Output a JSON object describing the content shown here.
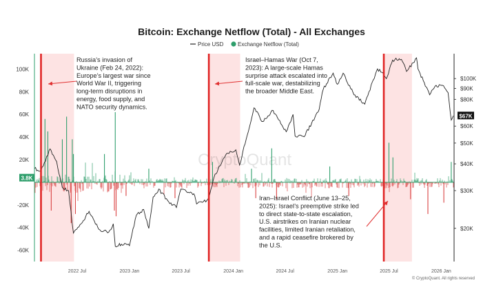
{
  "chart_data": {
    "type": "bar",
    "title": "Bitcoin: Exchange Netflow (Total) - All Exchanges",
    "legend": {
      "placement": "top-center",
      "series": [
        {
          "name": "Price USD",
          "style": "line",
          "color": "#222222"
        },
        {
          "name": "Exchange Netflow (Total)",
          "style": "bar",
          "color": "#2e9e6b"
        }
      ]
    },
    "x_axis": {
      "range": [
        "2022-02-01",
        "2026-02-15"
      ],
      "ticks": [
        {
          "date": "2022-07-01",
          "label": "2022 Jul"
        },
        {
          "date": "2023-01-01",
          "label": "2023 Jan"
        },
        {
          "date": "2023-07-01",
          "label": "2023 Jul"
        },
        {
          "date": "2024-01-01",
          "label": "2024 Jan"
        },
        {
          "date": "2024-07-01",
          "label": "2024 Jul"
        },
        {
          "date": "2025-01-01",
          "label": "2025 Jan"
        },
        {
          "date": "2025-07-01",
          "label": "2025 Jul"
        },
        {
          "date": "2026-01-01",
          "label": "2026 Jan"
        }
      ]
    },
    "y_left": {
      "name": "Exchange Netflow (Total)",
      "range": [
        -70000,
        110000
      ],
      "ticks": [
        {
          "value": 100000,
          "label": "100K"
        },
        {
          "value": 80000,
          "label": "80K"
        },
        {
          "value": 60000,
          "label": "60K"
        },
        {
          "value": 40000,
          "label": "40K"
        },
        {
          "value": 20000,
          "label": "20K"
        },
        {
          "value": 0,
          "label": "0"
        },
        {
          "value": -20000,
          "label": "-20K"
        },
        {
          "value": -40000,
          "label": "-40K"
        },
        {
          "value": -60000,
          "label": "-60K"
        }
      ]
    },
    "y_right": {
      "name": "Price USD",
      "scale": "log",
      "range": [
        14000,
        125000
      ],
      "ticks": [
        {
          "value": 100000,
          "label": "$100K"
        },
        {
          "value": 90000,
          "label": "$90K"
        },
        {
          "value": 80000,
          "label": "$80K"
        },
        {
          "value": 60000,
          "label": "$60K"
        },
        {
          "value": 50000,
          "label": "$50K"
        },
        {
          "value": 40000,
          "label": "$40K"
        },
        {
          "value": 30000,
          "label": "$30K"
        },
        {
          "value": 20000,
          "label": "$20K"
        }
      ]
    },
    "current_price_label": "$67K",
    "current_price_value": 67000,
    "current_netflow_label": "3.8K",
    "current_netflow_value": 3800,
    "price_series": [
      {
        "date": "2022-02-01",
        "value": 38000
      },
      {
        "date": "2022-02-24",
        "value": 37000
      },
      {
        "date": "2022-03-28",
        "value": 47000
      },
      {
        "date": "2022-04-20",
        "value": 41000
      },
      {
        "date": "2022-05-10",
        "value": 31000
      },
      {
        "date": "2022-06-01",
        "value": 30000
      },
      {
        "date": "2022-06-18",
        "value": 19000
      },
      {
        "date": "2022-07-15",
        "value": 21000
      },
      {
        "date": "2022-08-12",
        "value": 24000
      },
      {
        "date": "2022-09-15",
        "value": 19800
      },
      {
        "date": "2022-10-20",
        "value": 19200
      },
      {
        "date": "2022-11-05",
        "value": 21000
      },
      {
        "date": "2022-11-12",
        "value": 16500
      },
      {
        "date": "2022-12-15",
        "value": 17000
      },
      {
        "date": "2023-01-01",
        "value": 16600
      },
      {
        "date": "2023-01-25",
        "value": 23000
      },
      {
        "date": "2023-02-20",
        "value": 24500
      },
      {
        "date": "2023-03-10",
        "value": 20000
      },
      {
        "date": "2023-03-25",
        "value": 28000
      },
      {
        "date": "2023-04-14",
        "value": 30500
      },
      {
        "date": "2023-05-15",
        "value": 27000
      },
      {
        "date": "2023-06-15",
        "value": 25000
      },
      {
        "date": "2023-07-01",
        "value": 30500
      },
      {
        "date": "2023-08-15",
        "value": 29000
      },
      {
        "date": "2023-08-25",
        "value": 26000
      },
      {
        "date": "2023-09-30",
        "value": 27000
      },
      {
        "date": "2023-10-07",
        "value": 27900
      },
      {
        "date": "2023-10-25",
        "value": 34500
      },
      {
        "date": "2023-12-05",
        "value": 44000
      },
      {
        "date": "2024-01-10",
        "value": 46500
      },
      {
        "date": "2024-01-23",
        "value": 39500
      },
      {
        "date": "2024-02-15",
        "value": 52000
      },
      {
        "date": "2024-03-14",
        "value": 73000
      },
      {
        "date": "2024-04-13",
        "value": 63000
      },
      {
        "date": "2024-05-20",
        "value": 71000
      },
      {
        "date": "2024-07-05",
        "value": 56500
      },
      {
        "date": "2024-07-29",
        "value": 68000
      },
      {
        "date": "2024-08-05",
        "value": 54000
      },
      {
        "date": "2024-09-06",
        "value": 53500
      },
      {
        "date": "2024-10-29",
        "value": 72000
      },
      {
        "date": "2024-11-12",
        "value": 89000
      },
      {
        "date": "2024-12-17",
        "value": 106000
      },
      {
        "date": "2025-01-01",
        "value": 94000
      },
      {
        "date": "2025-01-21",
        "value": 106000
      },
      {
        "date": "2025-02-28",
        "value": 84000
      },
      {
        "date": "2025-04-07",
        "value": 76000
      },
      {
        "date": "2025-05-22",
        "value": 111000
      },
      {
        "date": "2025-06-13",
        "value": 104000
      },
      {
        "date": "2025-06-22",
        "value": 100000
      },
      {
        "date": "2025-07-14",
        "value": 122000
      },
      {
        "date": "2025-08-14",
        "value": 123000
      },
      {
        "date": "2025-09-01",
        "value": 108000
      },
      {
        "date": "2025-10-06",
        "value": 125000
      },
      {
        "date": "2025-10-11",
        "value": 111000
      },
      {
        "date": "2025-11-21",
        "value": 84000
      },
      {
        "date": "2025-12-10",
        "value": 92000
      },
      {
        "date": "2026-01-05",
        "value": 93000
      },
      {
        "date": "2026-01-25",
        "value": 86000
      },
      {
        "date": "2026-02-05",
        "value": 64000
      },
      {
        "date": "2026-02-12",
        "value": 67000
      }
    ],
    "netflow_spikes": [
      {
        "date": "2022-03-10",
        "value": 56000
      },
      {
        "date": "2022-03-20",
        "value": 45000
      },
      {
        "date": "2022-04-01",
        "value": -25000
      },
      {
        "date": "2022-05-10",
        "value": 38000
      },
      {
        "date": "2022-05-25",
        "value": 58000
      },
      {
        "date": "2022-06-10",
        "value": -36000
      },
      {
        "date": "2022-06-14",
        "value": 38000
      },
      {
        "date": "2022-06-18",
        "value": 25000
      },
      {
        "date": "2022-06-25",
        "value": -28000
      },
      {
        "date": "2022-10-05",
        "value": 25000
      },
      {
        "date": "2022-11-09",
        "value": -25000
      },
      {
        "date": "2022-11-12",
        "value": 62000
      },
      {
        "date": "2022-11-15",
        "value": -30000
      },
      {
        "date": "2022-12-20",
        "value": -12000
      },
      {
        "date": "2023-03-10",
        "value": 12000
      },
      {
        "date": "2023-06-10",
        "value": -14000
      },
      {
        "date": "2023-10-20",
        "value": 18000
      },
      {
        "date": "2024-03-05",
        "value": 12000
      },
      {
        "date": "2024-03-20",
        "value": -14000
      },
      {
        "date": "2024-05-15",
        "value": 30000
      },
      {
        "date": "2024-06-01",
        "value": -15000
      },
      {
        "date": "2024-12-05",
        "value": 14000
      },
      {
        "date": "2025-02-10",
        "value": -12000
      },
      {
        "date": "2025-07-01",
        "value": 35000
      },
      {
        "date": "2025-07-15",
        "value": 22000
      },
      {
        "date": "2025-09-15",
        "value": -15000
      },
      {
        "date": "2025-11-15",
        "value": -28000
      },
      {
        "date": "2026-01-10",
        "value": -18000
      },
      {
        "date": "2026-02-05",
        "value": 18000
      }
    ],
    "events": [
      {
        "name": "Russia's invasion of Ukraine",
        "start": "2022-02-24",
        "shade_end": "2022-06-20",
        "text": "Russia’s invasion of Ukraine (Feb 24, 2022): Europe’s largest war since World War II, triggering long-term disruptions in energy, food supply, and NATO security dynamics.",
        "lines": [
          "Russia’s invasion of",
          "Ukraine (Feb 24, 2022):",
          "Europe’s largest war since",
          "World War II, triggering",
          "long-term disruptions in",
          "energy, food supply, and",
          "NATO security dynamics."
        ]
      },
      {
        "name": "Israel–Hamas War",
        "start": "2023-10-07",
        "shade_end": "2024-01-25",
        "text": "Israel–Hamas War (Oct 7, 2023): A large-scale Hamas surprise attack escalated into full-scale war, destabilizing the broader Middle East.",
        "lines": [
          "Israel–Hamas War (Oct 7,",
          "2023): A large-scale Hamas",
          "surprise attack escalated into",
          "full-scale war, destabilizing",
          "the broader Middle East."
        ]
      },
      {
        "name": "Iran–Israel Conflict",
        "start": "2025-06-13",
        "shade_end": "2025-09-20",
        "text": "Iran–Israel Conflict (June 13–25, 2025): Israel’s preemptive strike led to direct state-to-state escalation, U.S. airstrikes on Iranian nuclear facilities, limited Iranian retaliation, and a rapid ceasefire brokered by the U.S.",
        "lines": [
          "Iran–Israel Conflict (June 13–25,",
          "2025): Israel’s preemptive strike led",
          "to direct state-to-state escalation,",
          "U.S. airstrikes on Iranian nuclear",
          "facilities, limited Iranian retaliation,",
          "and a rapid ceasefire brokered by",
          "the U.S."
        ]
      }
    ],
    "watermark": "CryptoQuant",
    "credit": "© CryptoQuant. All rights reserved"
  },
  "colors": {
    "price_line": "#222222",
    "netflow_positive": "#2e9e6b",
    "netflow_negative": "#d94040",
    "event_line": "#e02424",
    "event_shade": "#fde3e3",
    "price_tag": "#111111",
    "netflow_tag": "#2e9e6b",
    "arrow": "#e03030"
  }
}
